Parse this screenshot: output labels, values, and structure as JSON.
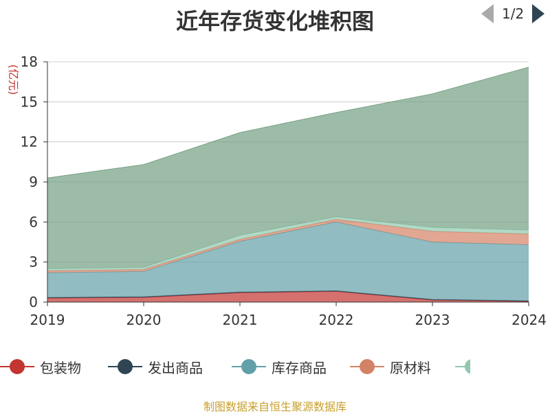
{
  "title": "近年存货变化堆积图",
  "source_note": "制图数据来自恒生聚源数据库",
  "legend_pager": {
    "text": "1/2"
  },
  "legend": [
    {
      "label": "包装物",
      "color": "#c23531"
    },
    {
      "label": "发出商品",
      "color": "#2f4554"
    },
    {
      "label": "库存商品",
      "color": "#61a0a8"
    },
    {
      "label": "原材料",
      "color": "#d48265"
    }
  ],
  "chart_data": {
    "type": "area",
    "stacked": true,
    "title": "近年存货变化堆积图",
    "ylabel": "(亿元)",
    "xlabel": "",
    "ylim": [
      0,
      18
    ],
    "yticks": [
      0,
      3,
      6,
      9,
      12,
      15,
      18
    ],
    "categories": [
      "2019",
      "2020",
      "2021",
      "2022",
      "2023",
      "2024"
    ],
    "grid": true,
    "legend_position": "bottom",
    "series": [
      {
        "name": "包装物",
        "color": "#c23531",
        "values": [
          0.3,
          0.35,
          0.7,
          0.8,
          0.15,
          0.05
        ]
      },
      {
        "name": "发出商品",
        "color": "#2f4554",
        "values": [
          0.05,
          0.05,
          0.05,
          0.05,
          0.05,
          0.05
        ]
      },
      {
        "name": "库存商品",
        "color": "#61a0a8",
        "values": [
          1.85,
          1.9,
          3.8,
          5.15,
          4.3,
          4.2
        ]
      },
      {
        "name": "原材料",
        "color": "#d48265",
        "values": [
          0.15,
          0.15,
          0.15,
          0.2,
          0.8,
          0.8
        ]
      },
      {
        "color": "#91c7ae",
        "values": [
          0.15,
          0.15,
          0.3,
          0.2,
          0.3,
          0.3
        ]
      },
      {
        "color": "#749f83",
        "values": [
          6.8,
          7.7,
          7.7,
          7.8,
          10.0,
          12.2
        ]
      }
    ]
  }
}
